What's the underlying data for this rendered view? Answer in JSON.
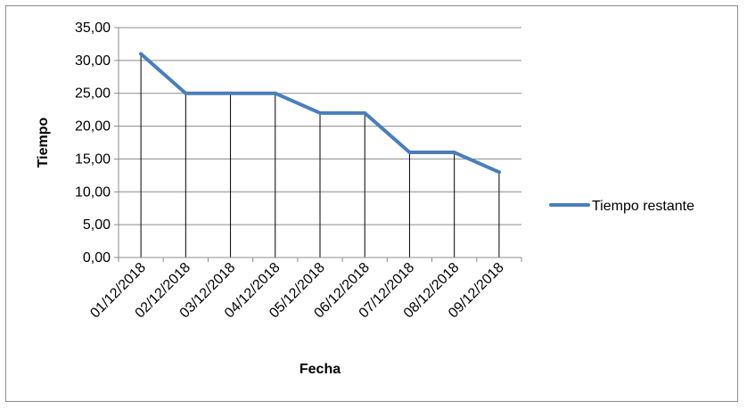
{
  "chart_data": {
    "type": "line",
    "categories": [
      "01/12/2018",
      "02/12/2018",
      "03/12/2018",
      "04/12/2018",
      "05/12/2018",
      "06/12/2018",
      "07/12/2018",
      "08/12/2018",
      "09/12/2018"
    ],
    "series": [
      {
        "name": "Tiempo restante",
        "values": [
          31,
          25,
          25,
          25,
          22,
          22,
          16,
          16,
          13
        ],
        "color": "#4a7ebb"
      }
    ],
    "xlabel": "Fecha",
    "ylabel": "Tiempo",
    "ylim": [
      0,
      35
    ],
    "y_ticks": [
      "0,00",
      "5,00",
      "10,00",
      "15,00",
      "20,00",
      "25,00",
      "30,00",
      "35,00"
    ],
    "y_tick_values": [
      0,
      5,
      10,
      15,
      20,
      25,
      30,
      35
    ],
    "grid": "horizontal",
    "drop_lines": true,
    "legend_position": "right"
  }
}
